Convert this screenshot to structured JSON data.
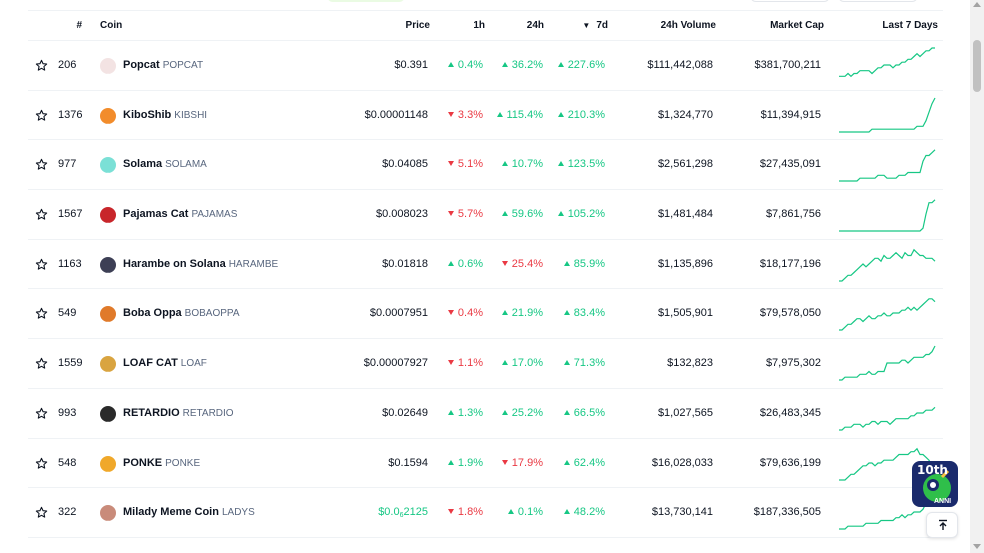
{
  "headers": {
    "rank": "#",
    "coin": "Coin",
    "price": "Price",
    "h1": "1h",
    "h24": "24h",
    "d7": "7d",
    "volume": "24h Volume",
    "market_cap": "Market Cap",
    "sparkline": "Last 7 Days",
    "sort_icon": "triangle-down-icon"
  },
  "rows": [
    {
      "rank": "206",
      "name": "Popcat",
      "symbol": "POPCAT",
      "price": "$0.391",
      "h1": "0.4%",
      "h1_dir": "up",
      "h24": "36.2%",
      "h24_dir": "up",
      "d7": "227.6%",
      "d7_dir": "up",
      "volume": "$111,442,088",
      "market_cap": "$381,700,211",
      "logo_color": "#f3e3e3",
      "logo_icon": "cat-icon"
    },
    {
      "rank": "1376",
      "name": "KiboShib",
      "symbol": "KIBSHI",
      "price": "$0.00001148",
      "h1": "3.3%",
      "h1_dir": "down",
      "h24": "115.4%",
      "h24_dir": "up",
      "d7": "210.3%",
      "d7_dir": "up",
      "volume": "$1,324,770",
      "market_cap": "$11,394,915",
      "logo_color": "#f28c2b",
      "logo_icon": "shiba-icon"
    },
    {
      "rank": "977",
      "name": "Solama",
      "symbol": "SOLAMA",
      "price": "$0.04085",
      "h1": "5.1%",
      "h1_dir": "down",
      "h24": "10.7%",
      "h24_dir": "up",
      "d7": "123.5%",
      "d7_dir": "up",
      "volume": "$2,561,298",
      "market_cap": "$27,435,091",
      "logo_color": "#7be0d6",
      "logo_icon": "llama-icon"
    },
    {
      "rank": "1567",
      "name": "Pajamas Cat",
      "symbol": "PAJAMAS",
      "price": "$0.008023",
      "h1": "5.7%",
      "h1_dir": "down",
      "h24": "59.6%",
      "h24_dir": "up",
      "d7": "105.2%",
      "d7_dir": "up",
      "volume": "$1,481,484",
      "market_cap": "$7,861,756",
      "logo_color": "#c8262b",
      "logo_icon": "cat-icon"
    },
    {
      "rank": "1163",
      "name": "Harambe on Solana",
      "symbol": "HARAMBE",
      "price": "$0.01818",
      "h1": "0.6%",
      "h1_dir": "up",
      "h24": "25.4%",
      "h24_dir": "down",
      "d7": "85.9%",
      "d7_dir": "up",
      "volume": "$1,135,896",
      "market_cap": "$18,177,196",
      "logo_color": "#3d3f55",
      "logo_icon": "gorilla-icon"
    },
    {
      "rank": "549",
      "name": "Boba Oppa",
      "symbol": "BOBAOPPA",
      "price": "$0.0007951",
      "h1": "0.4%",
      "h1_dir": "down",
      "h24": "21.9%",
      "h24_dir": "up",
      "d7": "83.4%",
      "d7_dir": "up",
      "volume": "$1,505,901",
      "market_cap": "$79,578,050",
      "logo_color": "#e07a2a",
      "logo_icon": "face-icon"
    },
    {
      "rank": "1559",
      "name": "LOAF CAT",
      "symbol": "LOAF",
      "price": "$0.00007927",
      "h1": "1.1%",
      "h1_dir": "down",
      "h24": "17.0%",
      "h24_dir": "up",
      "d7": "71.3%",
      "d7_dir": "up",
      "volume": "$132,823",
      "market_cap": "$7,975,302",
      "logo_color": "#d9a440",
      "logo_icon": "bread-icon"
    },
    {
      "rank": "993",
      "name": "RETARDIO",
      "symbol": "RETARDIO",
      "price": "$0.02649",
      "h1": "1.3%",
      "h1_dir": "up",
      "h24": "25.2%",
      "h24_dir": "up",
      "d7": "66.5%",
      "d7_dir": "up",
      "volume": "$1,027,565",
      "market_cap": "$26,483,345",
      "logo_color": "#2a2a2a",
      "logo_icon": "face-icon"
    },
    {
      "rank": "548",
      "name": "PONKE",
      "symbol": "PONKE",
      "price": "$0.1594",
      "h1": "1.9%",
      "h1_dir": "up",
      "h24": "17.9%",
      "h24_dir": "down",
      "d7": "62.4%",
      "d7_dir": "up",
      "volume": "$16,028,033",
      "market_cap": "$79,636,199",
      "logo_color": "#f0a82a",
      "logo_icon": "monkey-icon"
    },
    {
      "rank": "322",
      "name": "Milady Meme Coin",
      "symbol": "LADYS",
      "price_prefix": "$0.0",
      "price_sub": "6",
      "price_suffix": "2125",
      "price_color": "up",
      "h1": "1.8%",
      "h1_dir": "down",
      "h24": "0.1%",
      "h24_dir": "up",
      "d7": "48.2%",
      "d7_dir": "up",
      "volume": "$13,730,141",
      "market_cap": "$187,336,505",
      "logo_color": "#c98b7a",
      "logo_icon": "face-icon"
    }
  ],
  "sparklines": [
    [
      10,
      10,
      10,
      9,
      10,
      9,
      9,
      8,
      8,
      8,
      8,
      9,
      8,
      7,
      7,
      6,
      6,
      6,
      7,
      6,
      6,
      5,
      5,
      4,
      4,
      3,
      2,
      3,
      2,
      1,
      1,
      0,
      0
    ],
    [
      12,
      12,
      12,
      12,
      12,
      12,
      12,
      12,
      12,
      12,
      12,
      11,
      11,
      11,
      11,
      11,
      11,
      11,
      11,
      11,
      11,
      11,
      11,
      11,
      11,
      11,
      10,
      10,
      10,
      8,
      5,
      2,
      0
    ],
    [
      12,
      12,
      12,
      12,
      12,
      12,
      12,
      11,
      11,
      11,
      11,
      11,
      11,
      10,
      10,
      10,
      11,
      11,
      11,
      11,
      10,
      10,
      10,
      9,
      9,
      9,
      9,
      9,
      5,
      3,
      3,
      2,
      1
    ],
    [
      12,
      12,
      12,
      12,
      12,
      12,
      12,
      12,
      12,
      12,
      12,
      12,
      12,
      12,
      12,
      12,
      12,
      12,
      12,
      12,
      12,
      12,
      12,
      12,
      12,
      12,
      12,
      12,
      11,
      6,
      2,
      2,
      1
    ],
    [
      12,
      12,
      11,
      10,
      10,
      9,
      8,
      7,
      6,
      7,
      6,
      5,
      4,
      4,
      5,
      3,
      4,
      4,
      3,
      2,
      3,
      4,
      2,
      3,
      3,
      1,
      2,
      3,
      3,
      4,
      4,
      4,
      5
    ],
    [
      12,
      12,
      11,
      10,
      10,
      9,
      8,
      8,
      9,
      8,
      7,
      8,
      8,
      7,
      7,
      6,
      7,
      7,
      6,
      6,
      6,
      5,
      5,
      4,
      5,
      4,
      5,
      4,
      3,
      2,
      1,
      1,
      2
    ],
    [
      12,
      12,
      11,
      11,
      11,
      11,
      11,
      10,
      10,
      10,
      9,
      10,
      10,
      9,
      9,
      9,
      6,
      6,
      6,
      6,
      6,
      5,
      5,
      6,
      5,
      4,
      4,
      4,
      4,
      3,
      3,
      2,
      0
    ],
    [
      12,
      12,
      11,
      11,
      11,
      10,
      10,
      10,
      11,
      10,
      10,
      9,
      9,
      10,
      9,
      9,
      9,
      10,
      9,
      8,
      8,
      8,
      8,
      8,
      7,
      7,
      6,
      6,
      6,
      5,
      5,
      5,
      4
    ],
    [
      12,
      12,
      12,
      11,
      10,
      10,
      9,
      8,
      7,
      7,
      6,
      6,
      7,
      6,
      6,
      5,
      5,
      5,
      5,
      4,
      3,
      3,
      3,
      3,
      2,
      2,
      1,
      3,
      3,
      4,
      5,
      7,
      8
    ],
    [
      12,
      12,
      12,
      11,
      11,
      11,
      11,
      11,
      11,
      10,
      10,
      10,
      10,
      10,
      9,
      9,
      9,
      9,
      9,
      8,
      8,
      7,
      8,
      7,
      7,
      6,
      6,
      6,
      5,
      3,
      3,
      2,
      0
    ]
  ],
  "badge": {
    "top_text": "10th",
    "bottom_text": "ANNI"
  },
  "colors": {
    "up": "#16c784",
    "down": "#ea3943"
  }
}
